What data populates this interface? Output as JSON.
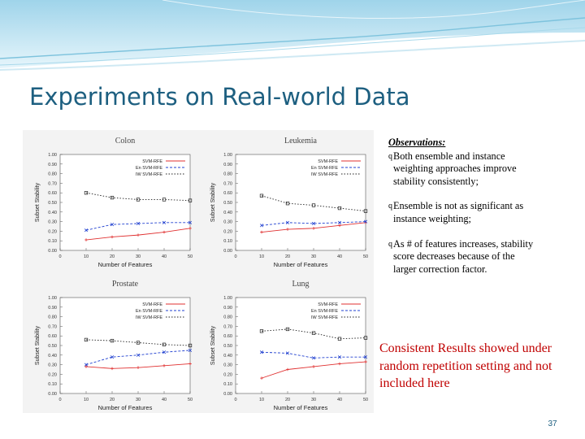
{
  "slide": {
    "title": "Experiments on Real-world Data",
    "number": "37",
    "observations_heading": "Observations:",
    "bullets": [
      "Both ensemble and instance weighting approaches improve stability consistently;",
      "Ensemble is not as significant as instance weighting;",
      "As # of features increases, stability score decreases because of the larger correction factor."
    ],
    "bullet_marker": "q",
    "conclusion": "Consistent Results showed under random repetition setting and not included here"
  },
  "colors": {
    "title": "#1d5f80",
    "conclusion": "#c00000",
    "svm_rfe": "#e03030",
    "en_svm_rfe": "#2040d0",
    "iw_svm_rfe": "#202020",
    "banner_light": "#dcf0f8",
    "banner_mid": "#a8d8ea"
  },
  "chart_data": [
    {
      "type": "line",
      "title": "Colon",
      "xlabel": "Number of Features",
      "ylabel": "Subset Stability",
      "x": [
        10,
        20,
        30,
        40,
        50
      ],
      "xlim": [
        0,
        50
      ],
      "ylim": [
        0,
        1
      ],
      "yticks": [
        "0.00",
        "0.10",
        "0.20",
        "0.30",
        "0.40",
        "0.50",
        "0.60",
        "0.70",
        "0.80",
        "0.90",
        "1.00"
      ],
      "xticks": [
        "0",
        "10",
        "20",
        "30",
        "40",
        "50"
      ],
      "legend_position": "top-right",
      "series": [
        {
          "name": "SVM-RFE",
          "values": [
            0.11,
            0.14,
            0.16,
            0.19,
            0.23
          ]
        },
        {
          "name": "En SVM-RFE",
          "values": [
            0.21,
            0.27,
            0.28,
            0.29,
            0.29
          ]
        },
        {
          "name": "IW SVM-RFE",
          "values": [
            0.6,
            0.55,
            0.53,
            0.53,
            0.52
          ]
        }
      ]
    },
    {
      "type": "line",
      "title": "Leukemia",
      "xlabel": "Number of Features",
      "ylabel": "Subset Stability",
      "x": [
        10,
        20,
        30,
        40,
        50
      ],
      "xlim": [
        0,
        50
      ],
      "ylim": [
        0,
        1
      ],
      "yticks": [
        "0.00",
        "0.10",
        "0.20",
        "0.30",
        "0.40",
        "0.50",
        "0.60",
        "0.70",
        "0.80",
        "0.90",
        "1.00"
      ],
      "xticks": [
        "0",
        "10",
        "20",
        "30",
        "40",
        "50"
      ],
      "legend_position": "top-right",
      "series": [
        {
          "name": "SVM-RFE",
          "values": [
            0.19,
            0.22,
            0.23,
            0.26,
            0.29
          ]
        },
        {
          "name": "En SVM-RFE",
          "values": [
            0.26,
            0.29,
            0.28,
            0.29,
            0.3
          ]
        },
        {
          "name": "IW SVM-RFE",
          "values": [
            0.57,
            0.49,
            0.47,
            0.44,
            0.41
          ]
        }
      ]
    },
    {
      "type": "line",
      "title": "Prostate",
      "xlabel": "Number of Features",
      "ylabel": "Subset Stability",
      "x": [
        10,
        20,
        30,
        40,
        50
      ],
      "xlim": [
        0,
        50
      ],
      "ylim": [
        0,
        1
      ],
      "yticks": [
        "0.00",
        "0.10",
        "0.20",
        "0.30",
        "0.40",
        "0.50",
        "0.60",
        "0.70",
        "0.80",
        "0.90",
        "1.00"
      ],
      "xticks": [
        "0",
        "10",
        "20",
        "30",
        "40",
        "50"
      ],
      "legend_position": "top-right",
      "series": [
        {
          "name": "SVM-RFE",
          "values": [
            0.28,
            0.26,
            0.27,
            0.29,
            0.31
          ]
        },
        {
          "name": "En SVM-RFE",
          "values": [
            0.3,
            0.38,
            0.4,
            0.43,
            0.45
          ]
        },
        {
          "name": "IW SVM-RFE",
          "values": [
            0.56,
            0.55,
            0.53,
            0.51,
            0.5
          ]
        }
      ]
    },
    {
      "type": "line",
      "title": "Lung",
      "xlabel": "Number of Features",
      "ylabel": "Subset Stability",
      "x": [
        10,
        20,
        30,
        40,
        50
      ],
      "xlim": [
        0,
        50
      ],
      "ylim": [
        0,
        1
      ],
      "yticks": [
        "0.00",
        "0.10",
        "0.20",
        "0.30",
        "0.40",
        "0.50",
        "0.60",
        "0.70",
        "0.80",
        "0.90",
        "1.00"
      ],
      "xticks": [
        "0",
        "10",
        "20",
        "30",
        "40",
        "50"
      ],
      "legend_position": "top-right",
      "series": [
        {
          "name": "SVM-RFE",
          "values": [
            0.16,
            0.25,
            0.28,
            0.31,
            0.33
          ]
        },
        {
          "name": "En SVM-RFE",
          "values": [
            0.43,
            0.42,
            0.37,
            0.38,
            0.38
          ]
        },
        {
          "name": "IW SVM-RFE",
          "values": [
            0.65,
            0.67,
            0.63,
            0.57,
            0.58
          ]
        }
      ]
    }
  ]
}
